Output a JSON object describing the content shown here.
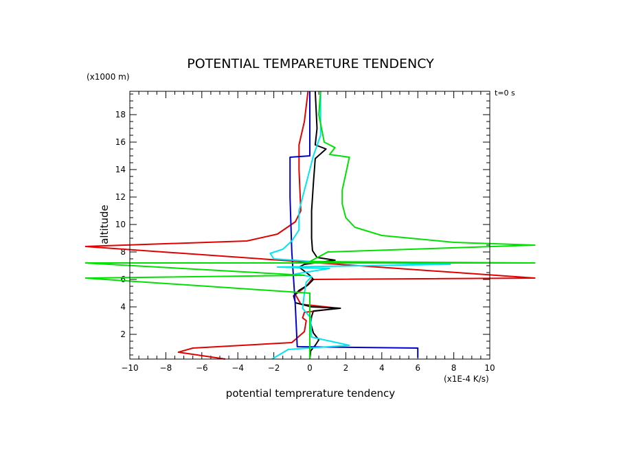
{
  "chart_data": {
    "type": "line",
    "title": "POTENTIAL TEMPARETURE TENDENCY",
    "xlabel": "potential temprerature tendency",
    "xunit": "(x1E-4 K/s)",
    "ylabel": "altitude",
    "yunit": "(x1000 m)",
    "time_label": "t=0 s",
    "xlim": [
      -10,
      10
    ],
    "ylim": [
      0.2,
      19.7
    ],
    "xticks": [
      -10,
      -8,
      -6,
      -4,
      -2,
      0,
      2,
      4,
      6,
      8,
      10
    ],
    "xtick_labels": [
      "−10",
      "−8",
      "−6",
      "−4",
      "−2",
      "0",
      "2",
      "4",
      "6",
      "8",
      "10"
    ],
    "yticks": [
      2,
      4,
      6,
      8,
      10,
      12,
      14,
      16,
      18
    ],
    "ytick_labels": [
      "2",
      "4",
      "6",
      "8",
      "10",
      "12",
      "14",
      "16",
      "18"
    ],
    "grid": false,
    "series": [
      {
        "name": "red",
        "color": "#e00000",
        "points": [
          [
            -4.7,
            0.2
          ],
          [
            -7.3,
            0.7
          ],
          [
            -6.5,
            1.0
          ],
          [
            -1.0,
            1.4
          ],
          [
            -0.3,
            2.2
          ],
          [
            -0.2,
            3.0
          ],
          [
            -0.4,
            3.2
          ],
          [
            -0.3,
            3.6
          ],
          [
            1.6,
            3.9
          ],
          [
            -0.5,
            4.2
          ],
          [
            -0.8,
            4.9
          ],
          [
            -0.2,
            5.5
          ],
          [
            0.1,
            6.0
          ],
          [
            12.5,
            6.1
          ],
          [
            -12.5,
            8.4
          ],
          [
            -3.5,
            8.8
          ],
          [
            -1.8,
            9.3
          ],
          [
            -0.8,
            10.2
          ],
          [
            -0.5,
            11.0
          ],
          [
            -0.6,
            14.0
          ],
          [
            -0.6,
            15.8
          ],
          [
            -0.3,
            17.5
          ],
          [
            -0.1,
            19.7
          ]
        ]
      },
      {
        "name": "black",
        "color": "#000000",
        "points": [
          [
            0,
            0.2
          ],
          [
            0.05,
            0.8
          ],
          [
            0.3,
            1.2
          ],
          [
            0.5,
            1.6
          ],
          [
            0.2,
            2.1
          ],
          [
            0.05,
            2.8
          ],
          [
            0.1,
            3.3
          ],
          [
            0.2,
            3.7
          ],
          [
            1.7,
            3.9
          ],
          [
            0.1,
            4.0
          ],
          [
            -0.8,
            4.3
          ],
          [
            -0.9,
            4.8
          ],
          [
            -0.6,
            5.2
          ],
          [
            -0.1,
            5.6
          ],
          [
            0.2,
            6.0
          ],
          [
            0,
            6.3
          ],
          [
            -0.6,
            6.9
          ],
          [
            -0.3,
            7.1
          ],
          [
            1.4,
            7.4
          ],
          [
            0.4,
            7.6
          ],
          [
            0.15,
            8.1
          ],
          [
            0.1,
            9.0
          ],
          [
            0.1,
            11.0
          ],
          [
            0.2,
            13.0
          ],
          [
            0.3,
            14.8
          ],
          [
            0.9,
            15.5
          ],
          [
            0.3,
            15.8
          ],
          [
            0.4,
            17.0
          ],
          [
            0.3,
            19.7
          ]
        ]
      },
      {
        "name": "blue",
        "color": "#0000cc",
        "points": [
          [
            6.0,
            0.3
          ],
          [
            6.0,
            1.0
          ],
          [
            -0.7,
            1.1
          ],
          [
            -0.8,
            4.0
          ],
          [
            -1.0,
            8.0
          ],
          [
            -1.1,
            12.0
          ],
          [
            -1.1,
            14.9
          ],
          [
            0,
            15.0
          ],
          [
            0,
            19.7
          ]
        ]
      },
      {
        "name": "cyan",
        "color": "#00e5ee",
        "points": [
          [
            -2.1,
            0.2
          ],
          [
            -1.2,
            0.9
          ],
          [
            2.2,
            1.2
          ],
          [
            0.1,
            1.8
          ],
          [
            0.05,
            3.2
          ],
          [
            -0.4,
            3.9
          ],
          [
            -0.3,
            5.0
          ],
          [
            -0.2,
            5.8
          ],
          [
            0.1,
            6.2
          ],
          [
            -0.8,
            6.4
          ],
          [
            1.1,
            6.8
          ],
          [
            -1.8,
            6.9
          ],
          [
            7.8,
            7.1
          ],
          [
            0.2,
            7.3
          ],
          [
            -2.0,
            7.5
          ],
          [
            -2.2,
            7.9
          ],
          [
            -1.5,
            8.2
          ],
          [
            -1.0,
            8.8
          ],
          [
            -0.6,
            9.6
          ],
          [
            -0.6,
            11.0
          ],
          [
            -0.2,
            13.0
          ],
          [
            0.2,
            15.0
          ],
          [
            0.6,
            16.5
          ],
          [
            0.6,
            19.7
          ]
        ]
      },
      {
        "name": "green",
        "color": "#00e000",
        "points": [
          [
            0,
            0.2
          ],
          [
            0,
            3.0
          ],
          [
            0,
            5.0
          ],
          [
            -12.5,
            6.1
          ],
          [
            -0.3,
            6.3
          ],
          [
            -12.5,
            7.2
          ],
          [
            12.5,
            7.2
          ],
          [
            0,
            7.3
          ],
          [
            1.0,
            8.0
          ],
          [
            12.5,
            8.5
          ],
          [
            8.0,
            8.7
          ],
          [
            4.0,
            9.2
          ],
          [
            2.5,
            9.8
          ],
          [
            2.0,
            10.5
          ],
          [
            1.8,
            11.5
          ],
          [
            1.8,
            12.5
          ],
          [
            2.2,
            14.9
          ],
          [
            1.1,
            15.1
          ],
          [
            1.4,
            15.6
          ],
          [
            0.8,
            16.0
          ],
          [
            0.5,
            18.0
          ],
          [
            0.6,
            19.7
          ]
        ]
      }
    ]
  }
}
